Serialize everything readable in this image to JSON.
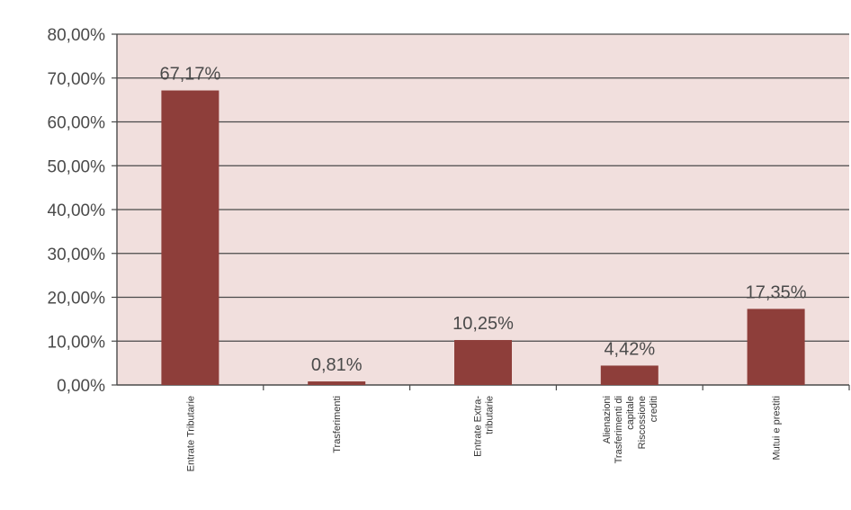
{
  "chart_data": {
    "type": "bar",
    "title": "",
    "xlabel": "",
    "ylabel": "",
    "ylim": [
      0,
      80
    ],
    "y_ticks": [
      "0,00%",
      "10,00%",
      "20,00%",
      "30,00%",
      "40,00%",
      "50,00%",
      "60,00%",
      "70,00%",
      "80,00%"
    ],
    "y_tick_values": [
      0,
      10,
      20,
      30,
      40,
      50,
      60,
      70,
      80
    ],
    "categories": [
      [
        "Entrate Tributarie"
      ],
      [
        "Trasferimenti"
      ],
      [
        "Entrate Extra-",
        "tributarie"
      ],
      [
        "Alienazioni",
        "Trasferimenti di",
        "capitale",
        "Riscossione",
        "crediti"
      ],
      [
        "Mutui e prestiti"
      ]
    ],
    "values": [
      67.17,
      0.81,
      10.25,
      4.42,
      17.35
    ],
    "data_labels": [
      "67,17%",
      "0,81%",
      "10,25%",
      "4,42%",
      "17,35%"
    ],
    "grid": true,
    "legend": "none",
    "colors": {
      "bar": "#8e3e3a",
      "plot_background": "#f1dfdd",
      "grid": "#4a4a4a",
      "text": "#4a4a4a"
    }
  }
}
